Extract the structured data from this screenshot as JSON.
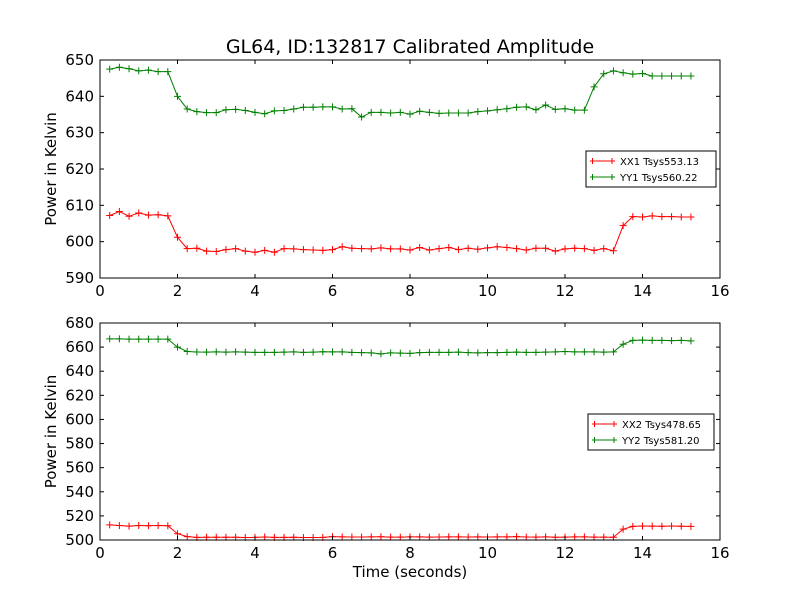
{
  "title": "GL64, ID:132817 Calibrated Amplitude",
  "colors": {
    "xx": "#ff0000",
    "yy": "#008000"
  },
  "chart_data": [
    {
      "type": "line",
      "xlabel": "",
      "ylabel": "Power in Kelvin",
      "xlim": [
        0,
        16
      ],
      "ylim": [
        590,
        650
      ],
      "xticks": [
        0,
        2,
        4,
        6,
        8,
        10,
        12,
        14,
        16
      ],
      "yticks": [
        590,
        600,
        610,
        620,
        630,
        640,
        650
      ],
      "grid": false,
      "legend_position": "right",
      "x": [
        0.25,
        0.5,
        0.75,
        1.0,
        1.25,
        1.5,
        1.75,
        2.0,
        2.25,
        2.5,
        2.75,
        3.0,
        3.25,
        3.5,
        3.75,
        4.0,
        4.25,
        4.5,
        4.75,
        5.0,
        5.25,
        5.5,
        5.75,
        6.0,
        6.25,
        6.5,
        6.75,
        7.0,
        7.25,
        7.5,
        7.75,
        8.0,
        8.25,
        8.5,
        8.75,
        9.0,
        9.25,
        9.5,
        9.75,
        10.0,
        10.25,
        10.5,
        10.75,
        11.0,
        11.25,
        11.5,
        11.75,
        12.0,
        12.25,
        12.5,
        12.75,
        13.0,
        13.25,
        13.5,
        13.75,
        14.0,
        14.25,
        14.5,
        14.75,
        15.0,
        15.25
      ],
      "series": [
        {
          "name": "XX1 Tsys553.13",
          "color": "#ff0000",
          "values": [
            607.2,
            608.3,
            607.0,
            607.9,
            607.3,
            607.4,
            607.1,
            601.2,
            598.1,
            598.2,
            597.4,
            597.3,
            597.8,
            598.1,
            597.4,
            597.1,
            597.6,
            597.1,
            598.1,
            598.0,
            597.8,
            597.7,
            597.6,
            597.8,
            598.6,
            598.2,
            598.1,
            598.0,
            598.3,
            598.0,
            598.0,
            597.7,
            598.4,
            597.7,
            598.1,
            598.4,
            597.8,
            598.2,
            597.9,
            598.3,
            598.6,
            598.4,
            598.1,
            597.7,
            598.2,
            598.2,
            597.4,
            598.0,
            598.2,
            598.1,
            597.6,
            598.1,
            597.5,
            604.4,
            606.9,
            606.8,
            607.1,
            606.9,
            606.9,
            606.8,
            606.8
          ]
        },
        {
          "name": "YY1 Tsys560.22",
          "color": "#008000",
          "values": [
            647.5,
            648.0,
            647.6,
            647.0,
            647.2,
            646.8,
            646.8,
            640.0,
            636.5,
            635.8,
            635.5,
            635.5,
            636.3,
            636.4,
            636.1,
            635.6,
            635.2,
            636.0,
            636.1,
            636.5,
            637.0,
            637.0,
            637.1,
            637.1,
            636.5,
            636.6,
            634.3,
            635.6,
            635.6,
            635.4,
            635.6,
            635.1,
            635.9,
            635.6,
            635.3,
            635.4,
            635.4,
            635.4,
            635.8,
            636.0,
            636.3,
            636.6,
            637.0,
            637.1,
            636.3,
            637.6,
            636.4,
            636.6,
            636.2,
            636.2,
            642.6,
            646.2,
            647.0,
            646.5,
            646.1,
            646.3,
            645.6,
            645.6,
            645.6,
            645.6,
            645.6
          ]
        }
      ]
    },
    {
      "type": "line",
      "xlabel": "Time (seconds)",
      "ylabel": "Power in Kelvin",
      "xlim": [
        0,
        16
      ],
      "ylim": [
        500,
        680
      ],
      "xticks": [
        0,
        2,
        4,
        6,
        8,
        10,
        12,
        14,
        16
      ],
      "yticks": [
        500,
        520,
        540,
        560,
        580,
        600,
        620,
        640,
        660,
        680
      ],
      "grid": false,
      "legend_position": "right",
      "x": [
        0.25,
        0.5,
        0.75,
        1.0,
        1.25,
        1.5,
        1.75,
        2.0,
        2.25,
        2.5,
        2.75,
        3.0,
        3.25,
        3.5,
        3.75,
        4.0,
        4.25,
        4.5,
        4.75,
        5.0,
        5.25,
        5.5,
        5.75,
        6.0,
        6.25,
        6.5,
        6.75,
        7.0,
        7.25,
        7.5,
        7.75,
        8.0,
        8.25,
        8.5,
        8.75,
        9.0,
        9.25,
        9.5,
        9.75,
        10.0,
        10.25,
        10.5,
        10.75,
        11.0,
        11.25,
        11.5,
        11.75,
        12.0,
        12.25,
        12.5,
        12.75,
        13.0,
        13.25,
        13.5,
        13.75,
        14.0,
        14.25,
        14.5,
        14.75,
        15.0,
        15.25
      ],
      "series": [
        {
          "name": "XX2 Tsys478.65",
          "color": "#ff0000",
          "values": [
            512.5,
            512.0,
            511.5,
            512.0,
            511.8,
            512.0,
            511.8,
            505.2,
            502.8,
            502.2,
            502.3,
            502.3,
            502.3,
            502.3,
            502.1,
            502.2,
            502.5,
            502.2,
            502.2,
            502.3,
            502.1,
            502.1,
            502.2,
            502.8,
            502.6,
            502.5,
            502.5,
            502.6,
            502.7,
            502.4,
            502.4,
            502.6,
            502.6,
            502.4,
            502.5,
            502.6,
            502.6,
            502.5,
            502.6,
            502.5,
            502.6,
            502.6,
            502.8,
            502.5,
            502.4,
            502.6,
            502.3,
            502.4,
            502.6,
            502.6,
            502.4,
            502.4,
            502.3,
            509.0,
            511.3,
            511.6,
            511.5,
            511.4,
            511.6,
            511.4,
            511.3
          ]
        },
        {
          "name": "YY2 Tsys581.20",
          "color": "#008000",
          "values": [
            666.8,
            666.8,
            666.6,
            666.6,
            666.6,
            666.6,
            666.6,
            660.0,
            656.4,
            655.9,
            655.8,
            656.0,
            655.8,
            656.0,
            655.8,
            655.6,
            655.6,
            655.6,
            655.8,
            656.0,
            655.6,
            655.8,
            656.2,
            656.0,
            656.0,
            655.6,
            655.4,
            655.2,
            654.4,
            655.2,
            655.0,
            654.8,
            655.4,
            655.6,
            655.6,
            655.6,
            655.8,
            655.4,
            655.2,
            655.4,
            655.4,
            655.6,
            655.8,
            655.6,
            655.6,
            655.8,
            656.0,
            656.4,
            656.0,
            656.0,
            656.0,
            655.8,
            656.0,
            662.4,
            665.6,
            665.8,
            665.6,
            665.6,
            665.4,
            665.6,
            665.2
          ]
        }
      ]
    }
  ]
}
